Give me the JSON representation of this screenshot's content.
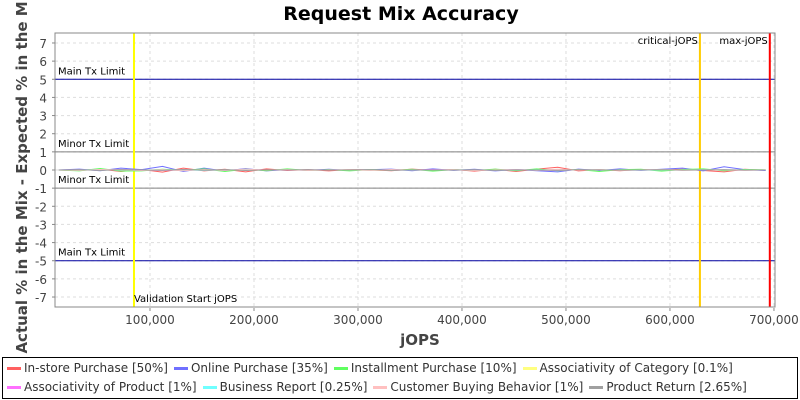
{
  "chart_data": {
    "type": "line",
    "title": "Request Mix Accuracy",
    "xlabel": "jOPS",
    "ylabel": "Actual % in the Mix - Expected % in the Mix",
    "xlim": [
      8650,
      701000
    ],
    "ylim": [
      -7.55,
      7.55
    ],
    "xticks": [
      100000,
      200000,
      300000,
      400000,
      500000,
      600000,
      700000
    ],
    "xtick_labels": [
      "100,000",
      "200,000",
      "300,000",
      "400,000",
      "500,000",
      "600,000",
      "700,000"
    ],
    "yticks": [
      -7,
      -6,
      -5,
      -4,
      -3,
      -2,
      -1,
      0,
      1,
      2,
      3,
      4,
      5,
      6,
      7
    ],
    "grid": true,
    "hlines": [
      {
        "y": 5,
        "label": "Main Tx Limit",
        "color": "#0000a0"
      },
      {
        "y": 1,
        "label": "Minor Tx Limit",
        "color": "#808080"
      },
      {
        "y": -1,
        "label": "Minor Tx Limit",
        "color": "#808080"
      },
      {
        "y": -5,
        "label": "Main Tx Limit",
        "color": "#0000a0"
      }
    ],
    "vlines": [
      {
        "x": 84600,
        "label": "Validation Start jOPS",
        "color": "#ffff00"
      },
      {
        "x": 628800,
        "label": "critical-jOPS",
        "color": "#ffcc00"
      },
      {
        "x": 696000,
        "label": "max-jOPS",
        "color": "#ff0000"
      }
    ],
    "x": [
      12000,
      32000,
      52000,
      72000,
      92000,
      112000,
      132000,
      152000,
      172000,
      192000,
      212000,
      232000,
      252000,
      272000,
      292000,
      312000,
      332000,
      352000,
      372000,
      392000,
      412000,
      432000,
      452000,
      472000,
      492000,
      512000,
      532000,
      552000,
      572000,
      592000,
      612000,
      632000,
      652000,
      672000,
      692000
    ],
    "series": [
      {
        "name": "In-store Purchase [50%]",
        "color": "#ff6060",
        "values": [
          0,
          -0.02,
          0.05,
          -0.08,
          0.03,
          -0.12,
          0.1,
          -0.05,
          0.04,
          -0.1,
          0.06,
          -0.03,
          0.02,
          -0.05,
          0.03,
          0.01,
          -0.04,
          0.05,
          -0.02,
          0.03,
          -0.06,
          0.04,
          -0.08,
          0.05,
          0.15,
          -0.05,
          0.02,
          -0.04,
          0.03,
          -0.02,
          0.05,
          -0.03,
          -0.1,
          0.04,
          -0.02
        ]
      },
      {
        "name": "Online Purchase [35%]",
        "color": "#7070ff",
        "values": [
          0,
          0.05,
          -0.04,
          0.1,
          0.02,
          0.2,
          -0.08,
          0.1,
          -0.06,
          0.08,
          -0.05,
          0.03,
          -0.02,
          0.04,
          -0.03,
          0.02,
          0.05,
          -0.04,
          0.06,
          -0.02,
          0.04,
          -0.05,
          0.03,
          -0.04,
          -0.1,
          0.05,
          -0.03,
          0.06,
          -0.02,
          0.04,
          0.1,
          -0.05,
          0.18,
          0.02,
          -0.03
        ]
      },
      {
        "name": "Installment Purchase [10%]",
        "color": "#60ff60",
        "values": [
          0,
          -0.05,
          0.08,
          -0.06,
          -0.05,
          0.04,
          -0.02,
          0.06,
          -0.08,
          0.05,
          -0.04,
          0.06,
          -0.03,
          0.02,
          -0.05,
          0.03,
          -0.02,
          0.04,
          -0.06,
          0.02,
          -0.03,
          0.05,
          -0.04,
          0.06,
          -0.04,
          0.03,
          -0.08,
          0.02,
          0.04,
          -0.06,
          0.03,
          0.06,
          -0.04,
          0.03,
          0.01
        ]
      },
      {
        "name": "Associativity of Category [0.1%]",
        "color": "#ffff80",
        "values": [
          0,
          0,
          0.01,
          0,
          -0.01,
          0,
          0.01,
          0,
          0,
          -0.01,
          0,
          0.01,
          0,
          0,
          0,
          -0.01,
          0,
          0.01,
          0,
          0,
          0,
          -0.01,
          0,
          0,
          0.01,
          0,
          0,
          -0.01,
          0,
          0,
          0.01,
          0,
          0,
          0,
          0
        ]
      },
      {
        "name": "Associativity of Product [1%]",
        "color": "#ff70ff",
        "values": [
          0,
          0.01,
          -0.01,
          0.02,
          0,
          -0.02,
          0.01,
          0,
          -0.01,
          0.02,
          0,
          -0.01,
          0.01,
          0,
          0,
          0.01,
          -0.01,
          0,
          0.02,
          0,
          -0.01,
          0,
          0.01,
          0,
          -0.02,
          0.01,
          0,
          0,
          -0.01,
          0.01,
          0,
          0.01,
          0,
          -0.01,
          0
        ]
      },
      {
        "name": "Business Report [0.25%]",
        "color": "#70ffff",
        "values": [
          0,
          0,
          0.02,
          -0.01,
          0,
          0.01,
          0,
          -0.02,
          0.01,
          0,
          0,
          0.01,
          -0.01,
          0,
          0.01,
          0,
          0,
          -0.01,
          0,
          0.01,
          0,
          0,
          -0.01,
          0.01,
          0,
          0,
          0.01,
          0,
          -0.01,
          0,
          0,
          0.01,
          0,
          0,
          0
        ]
      },
      {
        "name": "Customer Buying Behavior [1%]",
        "color": "#ffc0c0",
        "values": [
          0,
          -0.02,
          0.03,
          0.01,
          -0.03,
          0.02,
          -0.04,
          0.03,
          -0.02,
          0.05,
          -0.01,
          0.02,
          -0.03,
          0.01,
          0.02,
          -0.02,
          0.03,
          -0.01,
          0,
          0.02,
          -0.03,
          0.01,
          0.02,
          -0.02,
          0.04,
          -0.01,
          0.02,
          -0.02,
          0.01,
          0.03,
          -0.02,
          0.01,
          0,
          -0.02,
          0.01
        ]
      },
      {
        "name": "Product Return [2.65%]",
        "color": "#a0a0a0",
        "values": [
          0,
          0.02,
          -0.03,
          0.02,
          0.01,
          -0.02,
          0.03,
          -0.01,
          0.02,
          -0.03,
          0.01,
          0,
          0.02,
          -0.01,
          0.01,
          0.02,
          -0.02,
          0.01,
          0,
          -0.01,
          0.02,
          -0.02,
          0.01,
          0,
          -0.02,
          0.02,
          0.01,
          -0.01,
          0,
          0.02,
          -0.01,
          0,
          0.02,
          -0.01,
          0
        ]
      }
    ]
  }
}
